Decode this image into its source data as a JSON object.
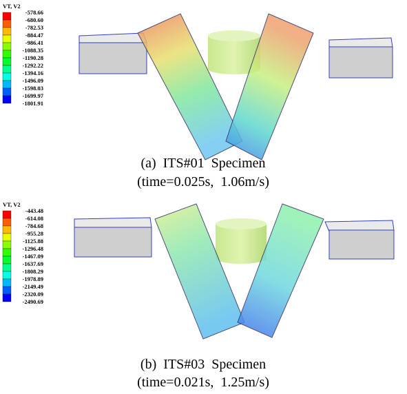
{
  "panels": [
    {
      "legend": {
        "title": "VT, V2",
        "labels": [
          "-578.66",
          "-680.60",
          "-782.53",
          "-884.47",
          "-986.41",
          "-1088.35",
          "-1190.28",
          "-1292.22",
          "-1394.16",
          "-1496.09",
          "-1598.03",
          "-1699.97",
          "-1801.91"
        ]
      },
      "caption": [
        "(a)  ITS#01  Specimen",
        "(time=0.025s,  1.06m/s)"
      ]
    },
    {
      "legend": {
        "title": "VT, V2",
        "labels": [
          "-443.48",
          "-614.08",
          "-784.68",
          "-955.28",
          "-1125.88",
          "-1296.48",
          "-1467.09",
          "-1637.69",
          "-1808.29",
          "-1978.89",
          "-2149.49",
          "-2320.09",
          "-2490.69"
        ]
      },
      "caption": [
        "(b)  ITS#03  Specimen",
        "(time=0.021s,  1.25m/s)"
      ]
    }
  ]
}
